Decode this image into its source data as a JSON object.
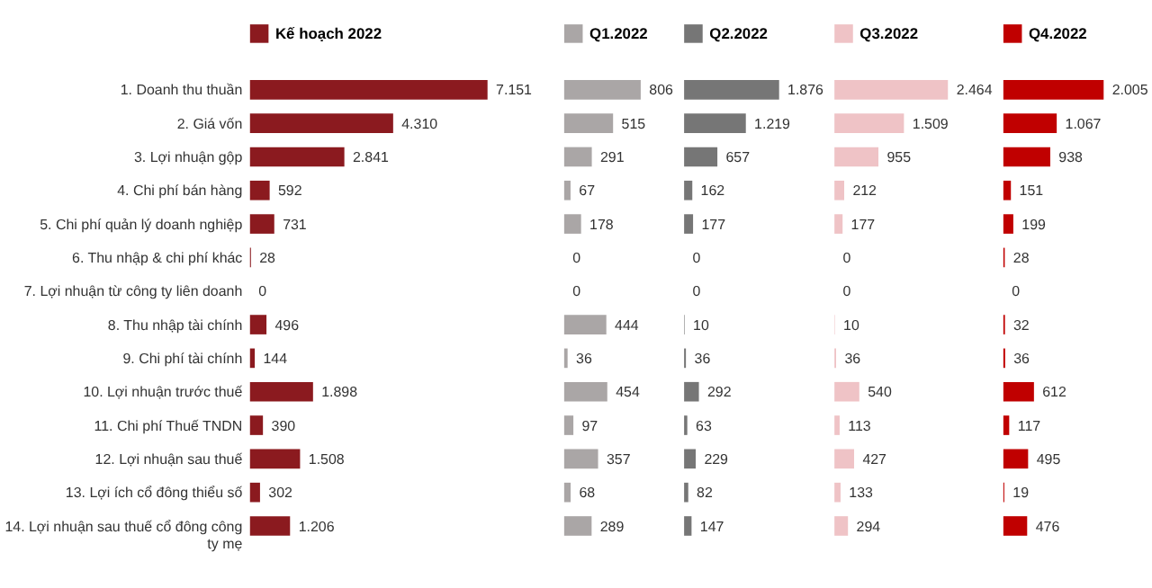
{
  "chart_data": [
    {
      "type": "bar",
      "orientation": "horizontal",
      "legend": "top",
      "grid": false,
      "categories": [
        "1. Doanh thu thuần",
        "2. Giá vốn",
        "3. Lợi nhuận gộp",
        "4. Chi phí bán hàng",
        "5. Chi phí quản lý doanh nghiệp",
        "6. Thu nhập & chi phí khác",
        "7. Lợi nhuận từ công ty liên doanh",
        "8. Thu nhập tài chính",
        "9. Chi phí tài chính",
        "10. Lợi nhuận trước thuế",
        "11. Chi phí Thuế TNDN",
        "12. Lợi nhuận sau thuế",
        "13. Lợi ích cổ đông thiểu số",
        "14. Lợi nhuận sau thuế cổ đông công ty mẹ"
      ],
      "series": [
        {
          "name": "Kế hoạch 2022",
          "color": "#8b1a1f",
          "values": [
            7151,
            4310,
            2841,
            592,
            731,
            28,
            0,
            496,
            144,
            1898,
            390,
            1508,
            302,
            1206
          ],
          "value_labels": [
            "7.151",
            "4.310",
            "2.841",
            "592",
            "731",
            "28",
            "0",
            "496",
            "144",
            "1.898",
            "390",
            "1.508",
            "302",
            "1.206"
          ]
        }
      ]
    },
    {
      "type": "bar",
      "orientation": "horizontal",
      "legend": "top",
      "grid": false,
      "tick_labels": false,
      "categories": [
        null,
        null,
        null,
        null,
        null,
        null,
        null,
        null,
        null,
        null,
        null,
        null,
        null,
        null
      ],
      "series": [
        {
          "name": "Q1.2022",
          "color": "#aaa6a6",
          "values": [
            806,
            515,
            291,
            67,
            178,
            0,
            0,
            444,
            36,
            454,
            97,
            357,
            68,
            289
          ],
          "value_labels": [
            "806",
            "515",
            "291",
            "67",
            "178",
            "0",
            "0",
            "444",
            "36",
            "454",
            "97",
            "357",
            "68",
            "289"
          ]
        }
      ]
    },
    {
      "type": "bar",
      "orientation": "horizontal",
      "legend": "top",
      "grid": false,
      "tick_labels": false,
      "categories": [
        null,
        null,
        null,
        null,
        null,
        null,
        null,
        null,
        null,
        null,
        null,
        null,
        null,
        null
      ],
      "series": [
        {
          "name": "Q2.2022",
          "color": "#767676",
          "values": [
            1876,
            1219,
            657,
            162,
            177,
            0,
            0,
            10,
            36,
            292,
            63,
            229,
            82,
            147
          ],
          "value_labels": [
            "1.876",
            "1.219",
            "657",
            "162",
            "177",
            "0",
            "0",
            "10",
            "36",
            "292",
            "63",
            "229",
            "82",
            "147"
          ]
        }
      ]
    },
    {
      "type": "bar",
      "orientation": "horizontal",
      "legend": "top",
      "grid": false,
      "tick_labels": false,
      "categories": [
        null,
        null,
        null,
        null,
        null,
        null,
        null,
        null,
        null,
        null,
        null,
        null,
        null,
        null
      ],
      "series": [
        {
          "name": "Q3.2022",
          "color": "#efc3c6",
          "values": [
            2464,
            1509,
            955,
            212,
            177,
            0,
            0,
            10,
            36,
            540,
            113,
            427,
            133,
            294
          ],
          "value_labels": [
            "2.464",
            "1.509",
            "955",
            "212",
            "177",
            "0",
            "0",
            "10",
            "36",
            "540",
            "113",
            "427",
            "133",
            "294"
          ]
        }
      ]
    },
    {
      "type": "bar",
      "orientation": "horizontal",
      "legend": "top",
      "grid": false,
      "tick_labels": false,
      "categories": [
        null,
        null,
        null,
        null,
        null,
        null,
        null,
        null,
        null,
        null,
        null,
        null,
        null,
        null
      ],
      "series": [
        {
          "name": "Q4.2022",
          "color": "#c00000",
          "values": [
            2005,
            1067,
            938,
            151,
            199,
            28,
            0,
            32,
            36,
            612,
            117,
            495,
            19,
            476
          ],
          "value_labels": [
            "2.005",
            "1.067",
            "938",
            "151",
            "199",
            "28",
            "0",
            "32",
            "36",
            "612",
            "117",
            "495",
            "19",
            "476"
          ]
        }
      ]
    }
  ]
}
